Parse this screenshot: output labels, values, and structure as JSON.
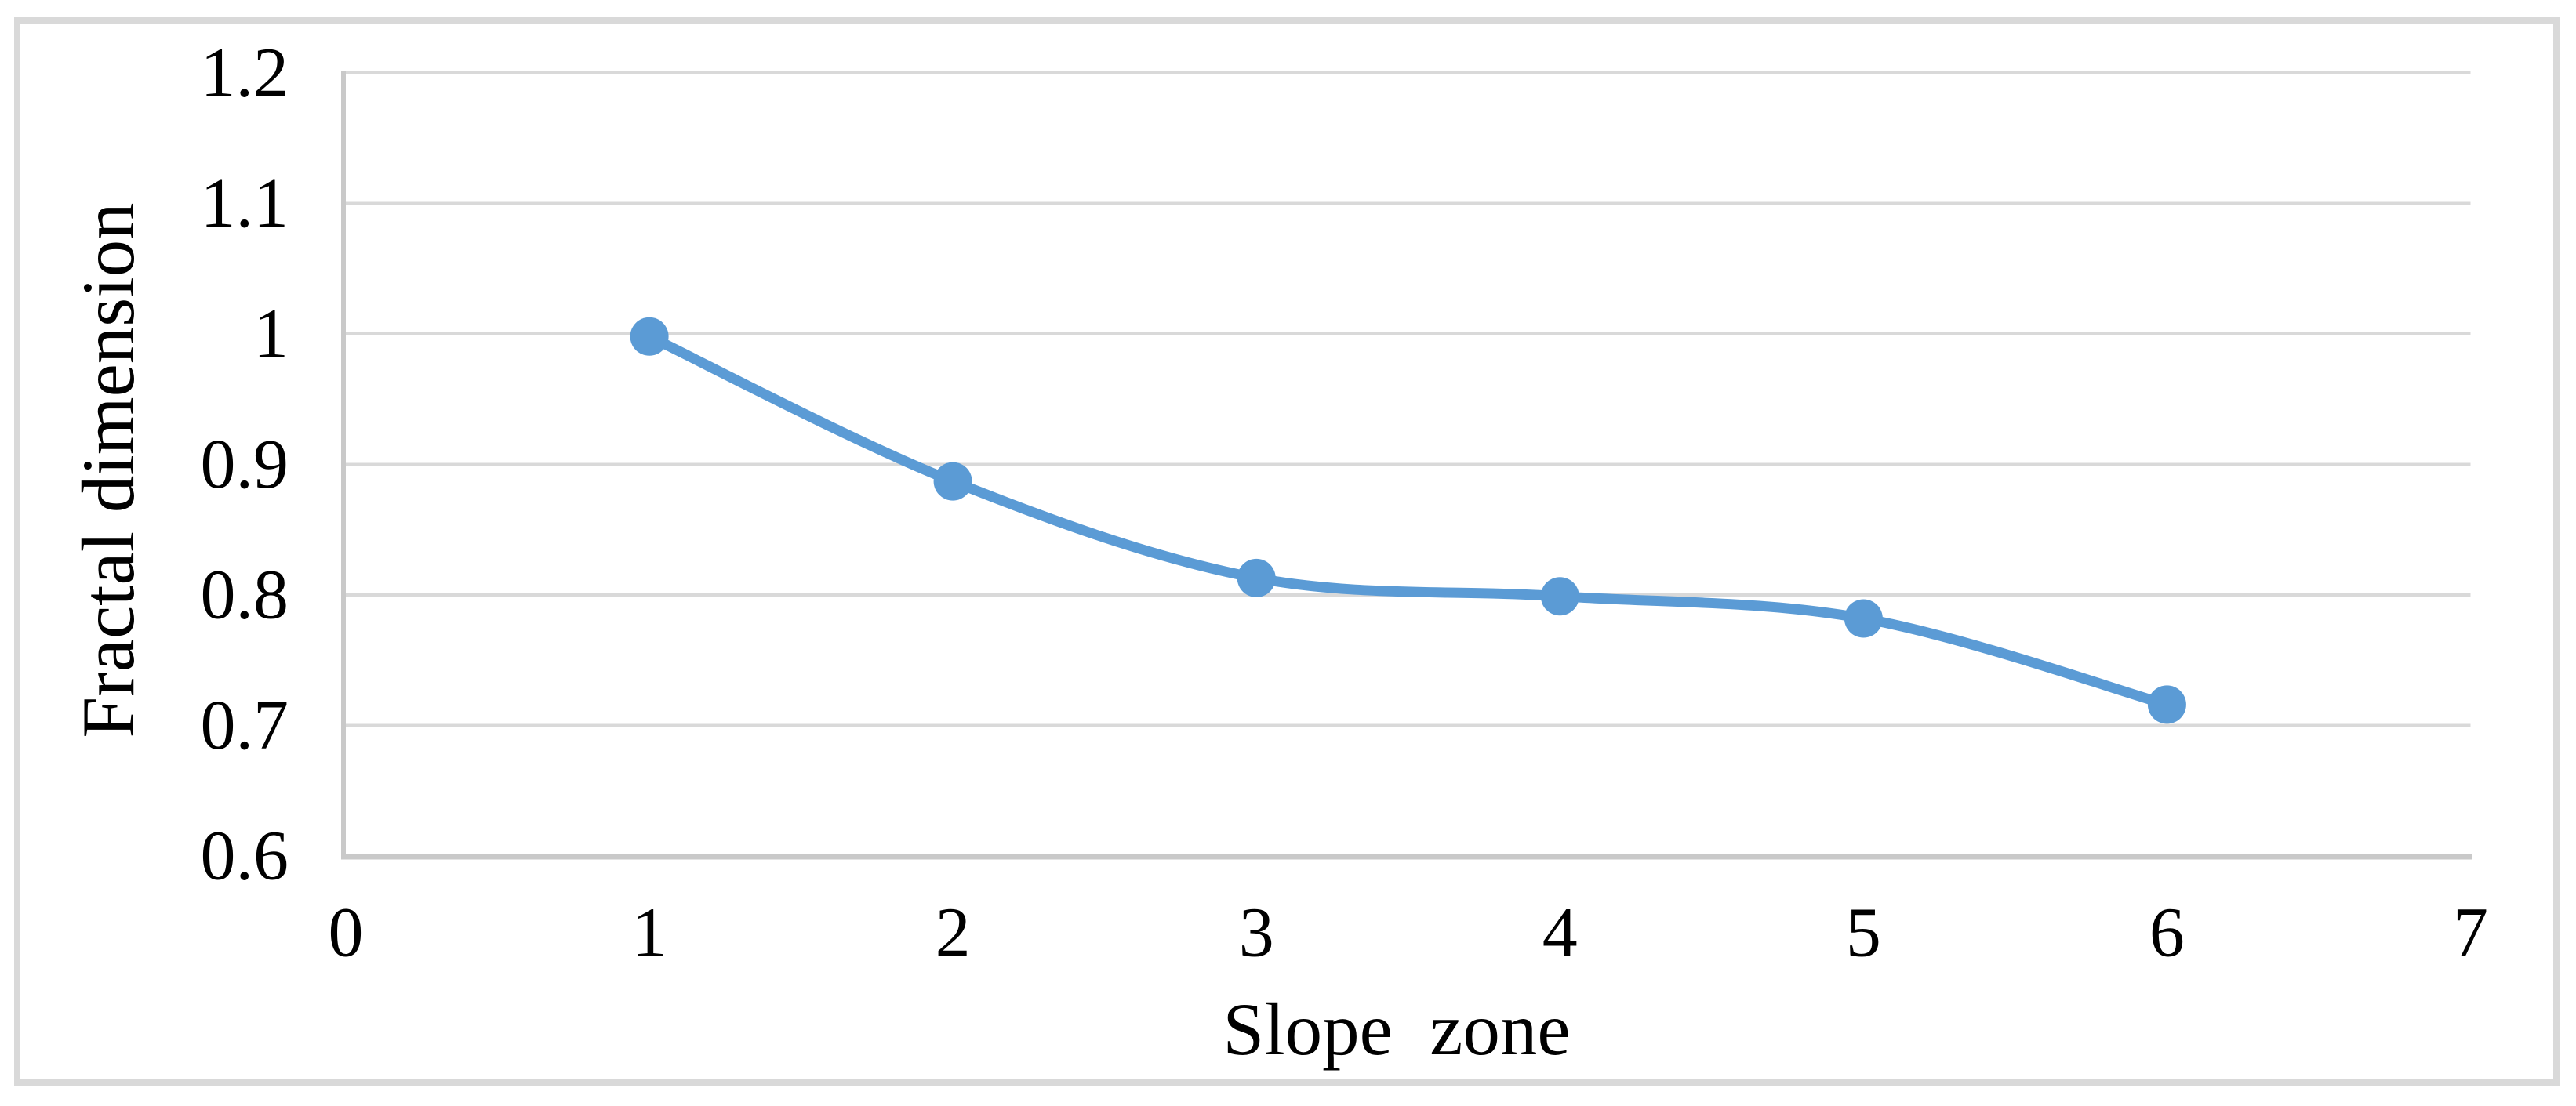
{
  "figure": {
    "background_color": "#ffffff",
    "border_color": "#d9d9d9"
  },
  "chart_data": {
    "type": "line",
    "title": "",
    "xlabel": "Slope  zone",
    "ylabel": "Fractal dimension",
    "x": [
      1,
      2,
      3,
      4,
      5,
      6
    ],
    "series": [
      {
        "name": "Fractal dimension",
        "values": [
          0.998,
          0.887,
          0.813,
          0.799,
          0.782,
          0.716
        ]
      }
    ],
    "x_ticks": [
      "0",
      "1",
      "2",
      "3",
      "4",
      "5",
      "6",
      "7"
    ],
    "y_ticks": [
      "0.6",
      "0.7",
      "0.8",
      "0.9",
      "1",
      "1.1",
      "1.2"
    ],
    "xlim": [
      0,
      7
    ],
    "ylim": [
      0.6,
      1.2
    ],
    "grid": "horizontal",
    "gridline_color": "#d9d9d9",
    "axis_line_color": "#c9c9c9",
    "line_color": "#5b9bd5",
    "marker": "circle",
    "marker_color": "#5b9bd5",
    "smooth": true,
    "legend": "none"
  }
}
